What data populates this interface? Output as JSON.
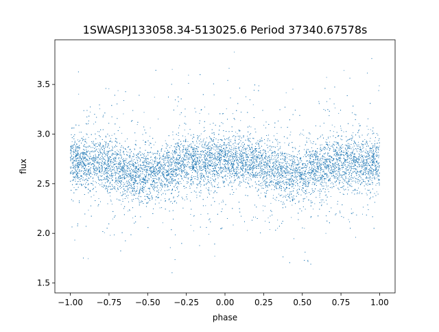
{
  "chart_data": {
    "type": "scatter",
    "title": "1SWASPJ133058.34-513025.6 Period 37340.67578s",
    "xlabel": "phase",
    "ylabel": "flux",
    "xlim": [
      -1.1,
      1.1
    ],
    "ylim": [
      1.4,
      3.95
    ],
    "xticks": [
      -1.0,
      -0.75,
      -0.5,
      -0.25,
      0.0,
      0.25,
      0.5,
      0.75,
      1.0
    ],
    "xtick_labels": [
      "−1.00",
      "−0.75",
      "−0.50",
      "−0.25",
      "0.00",
      "0.25",
      "0.50",
      "0.75",
      "1.00"
    ],
    "yticks": [
      1.5,
      2.0,
      2.5,
      3.0,
      3.5
    ],
    "ytick_labels": [
      "1.5",
      "2.0",
      "2.5",
      "3.0",
      "3.5"
    ],
    "grid": false,
    "legend": "none",
    "marker_color": "#1f77b4",
    "series": [
      {
        "x_range": [
          -1.0,
          1.0
        ],
        "median_flux_by_phase": {
          "x": [
            -1.0,
            -0.9,
            -0.8,
            -0.7,
            -0.6,
            -0.5,
            -0.4,
            -0.3,
            -0.2,
            -0.1,
            0.0,
            0.1,
            0.2,
            0.3,
            0.4,
            0.5,
            0.6,
            0.7,
            0.8,
            0.9,
            1.0
          ],
          "y": [
            2.72,
            2.72,
            2.71,
            2.66,
            2.6,
            2.58,
            2.63,
            2.69,
            2.72,
            2.72,
            2.72,
            2.72,
            2.71,
            2.66,
            2.6,
            2.58,
            2.63,
            2.69,
            2.72,
            2.72,
            2.72
          ]
        },
        "flux_range": [
          1.5,
          3.9
        ]
      }
    ]
  }
}
